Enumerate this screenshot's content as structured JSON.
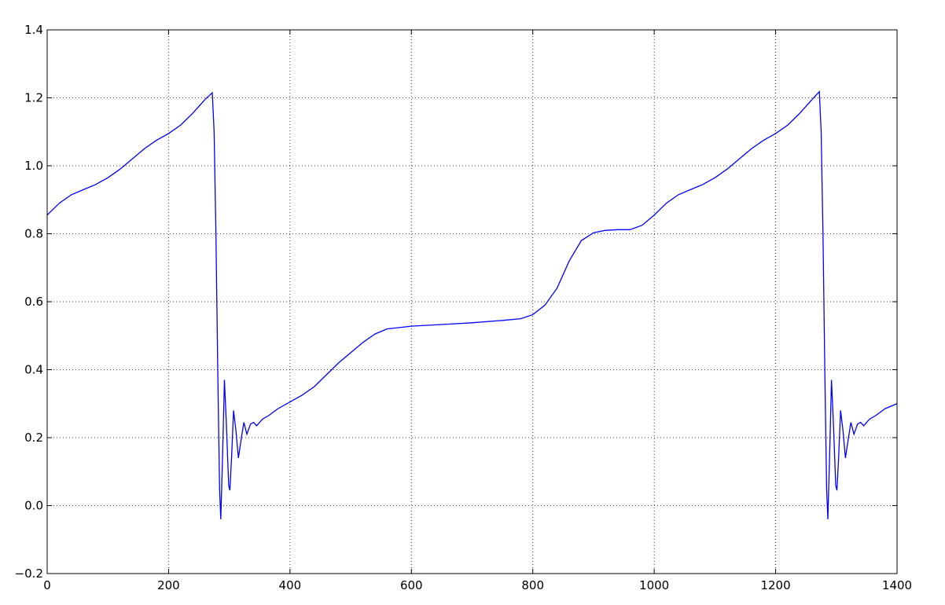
{
  "chart_data": {
    "type": "line",
    "color": "#0000ff",
    "grid": true,
    "x": [
      0,
      20,
      40,
      60,
      80,
      100,
      120,
      140,
      160,
      180,
      200,
      220,
      240,
      260,
      272,
      275,
      278,
      281,
      284,
      286,
      289,
      292,
      295,
      299,
      301,
      304,
      307,
      311,
      315,
      320,
      324,
      329,
      335,
      340,
      345,
      355,
      365,
      380,
      400,
      420,
      440,
      460,
      480,
      500,
      520,
      540,
      560,
      600,
      650,
      700,
      750,
      780,
      800,
      820,
      840,
      860,
      880,
      900,
      920,
      940,
      960,
      980,
      1000,
      1020,
      1040,
      1060,
      1080,
      1100,
      1120,
      1140,
      1160,
      1180,
      1200,
      1220,
      1240,
      1260,
      1272,
      1275,
      1278,
      1281,
      1284,
      1286,
      1289,
      1292,
      1295,
      1299,
      1301,
      1304,
      1307,
      1311,
      1315,
      1320,
      1324,
      1329,
      1335,
      1340,
      1345,
      1355,
      1365,
      1380,
      1400
    ],
    "values": [
      0.855,
      0.89,
      0.915,
      0.93,
      0.945,
      0.965,
      0.99,
      1.02,
      1.05,
      1.075,
      1.095,
      1.12,
      1.155,
      1.195,
      1.215,
      1.1,
      0.8,
      0.4,
      0.05,
      -0.04,
      0.15,
      0.37,
      0.25,
      0.06,
      0.045,
      0.15,
      0.28,
      0.22,
      0.14,
      0.2,
      0.245,
      0.21,
      0.24,
      0.245,
      0.235,
      0.255,
      0.265,
      0.285,
      0.305,
      0.325,
      0.35,
      0.385,
      0.42,
      0.45,
      0.48,
      0.505,
      0.52,
      0.528,
      0.533,
      0.538,
      0.545,
      0.55,
      0.562,
      0.59,
      0.64,
      0.72,
      0.78,
      0.803,
      0.81,
      0.812,
      0.812,
      0.825,
      0.855,
      0.89,
      0.915,
      0.93,
      0.945,
      0.965,
      0.99,
      1.02,
      1.05,
      1.075,
      1.095,
      1.12,
      1.155,
      1.195,
      1.218,
      1.1,
      0.8,
      0.4,
      0.05,
      -0.04,
      0.15,
      0.37,
      0.25,
      0.06,
      0.045,
      0.15,
      0.28,
      0.22,
      0.14,
      0.2,
      0.245,
      0.21,
      0.24,
      0.245,
      0.235,
      0.255,
      0.265,
      0.285,
      0.3
    ],
    "xlim": [
      0,
      1400
    ],
    "xticks": [
      0,
      200,
      400,
      600,
      800,
      1000,
      1200,
      1400
    ],
    "ylim": [
      -0.2,
      1.4
    ],
    "yticks": [
      {
        "value": -0.2,
        "label": "−0.2"
      },
      {
        "value": 0,
        "label": "0.0"
      },
      0.2,
      0.4,
      0.6,
      0.8,
      {
        "value": 1,
        "label": "1.0"
      },
      1.2,
      1.4
    ]
  }
}
